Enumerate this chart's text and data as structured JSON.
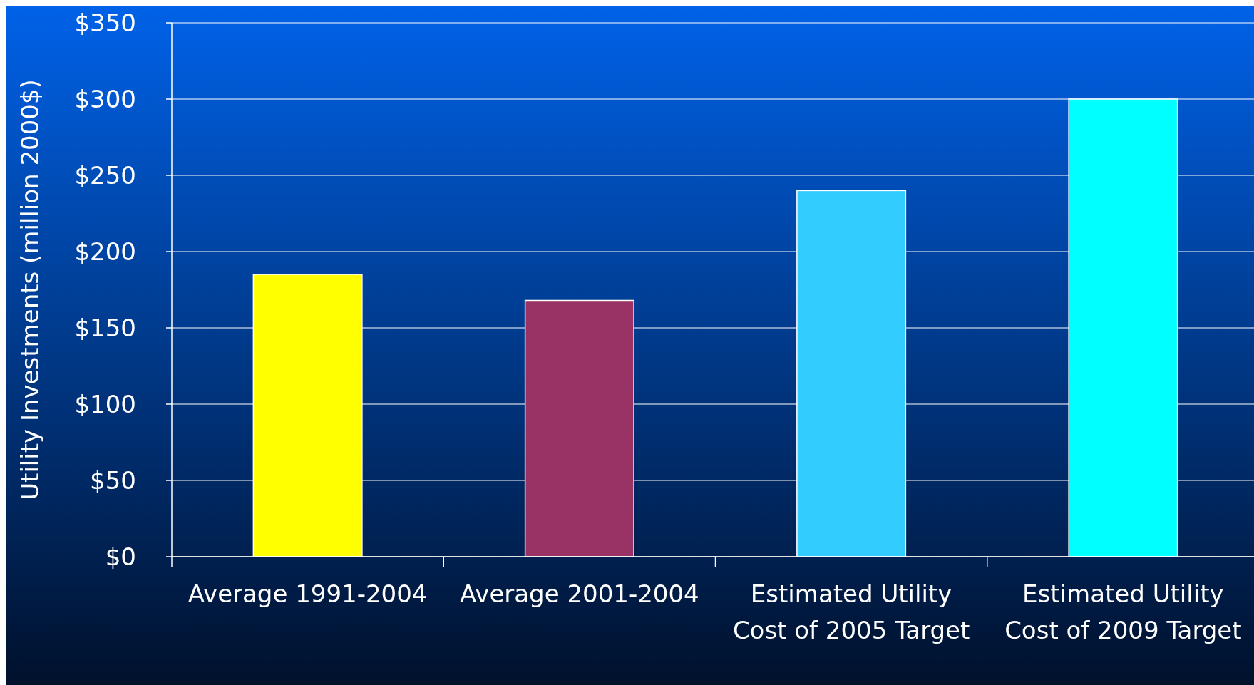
{
  "chart_data": {
    "type": "bar",
    "ylabel": "Utility Investments (million 2000$)",
    "categories": [
      "Average 1991-2004",
      "Average 2001-2004",
      "Estimated Utility Cost of 2005 Target",
      "Estimated Utility Cost of 2009 Target"
    ],
    "values": [
      185,
      168,
      240,
      300
    ],
    "colors": [
      "#ffff00",
      "#993366",
      "#33ccff",
      "#00ffff"
    ],
    "ylim": [
      0,
      350
    ],
    "yticks": [
      {
        "value": 0,
        "label": "$0"
      },
      {
        "value": 50,
        "label": "$50"
      },
      {
        "value": 100,
        "label": "$100"
      },
      {
        "value": 150,
        "label": "$150"
      },
      {
        "value": 200,
        "label": "$200"
      },
      {
        "value": 250,
        "label": "$250"
      },
      {
        "value": 300,
        "label": "$300"
      },
      {
        "value": 350,
        "label": "$350"
      }
    ],
    "grid": "y"
  }
}
